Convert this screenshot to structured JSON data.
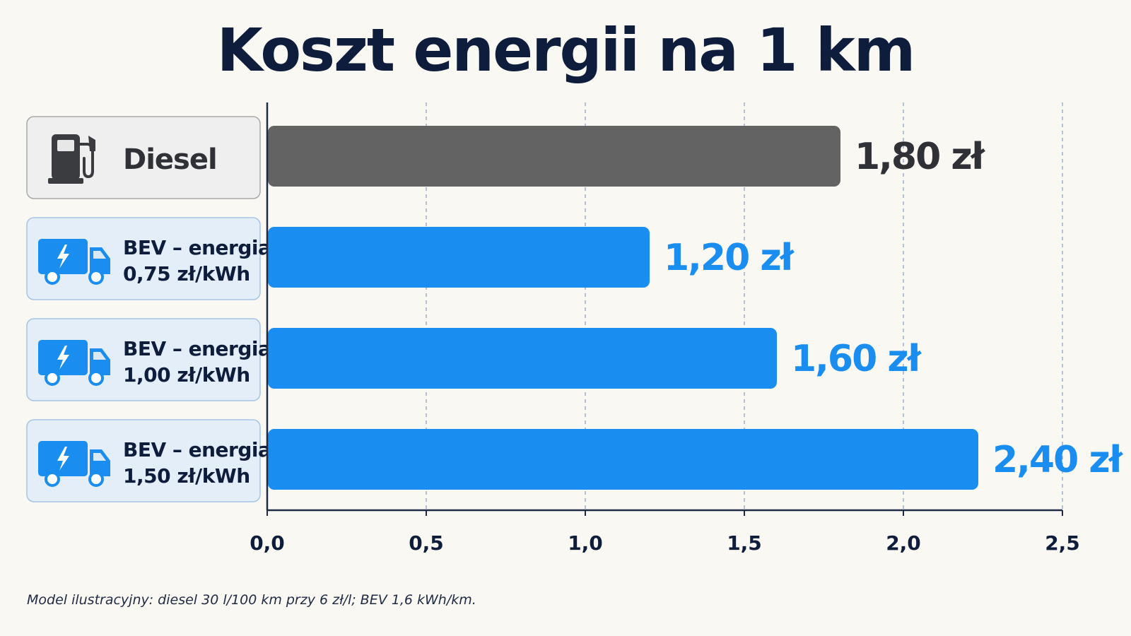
{
  "chart_data": {
    "type": "bar",
    "orientation": "horizontal",
    "title": "Koszt energii na 1 km",
    "categories": [
      {
        "lines": [
          "Diesel"
        ],
        "icon": "fuel-pump-icon",
        "kind": "diesel"
      },
      {
        "lines": [
          "BEV – energia",
          "0,75 zł/kWh"
        ],
        "icon": "electric-truck-icon",
        "kind": "bev"
      },
      {
        "lines": [
          "BEV – energia",
          "1,00 zł/kWh"
        ],
        "icon": "electric-truck-icon",
        "kind": "bev"
      },
      {
        "lines": [
          "BEV – energia",
          "1,50 zł/kWh"
        ],
        "icon": "electric-truck-icon",
        "kind": "bev"
      }
    ],
    "values": [
      1.8,
      1.2,
      1.6,
      2.4
    ],
    "value_labels": [
      "1,80 zł",
      "1,20 zł",
      "1,60 zł",
      "2,40 zł"
    ],
    "xlim": [
      0,
      2.5
    ],
    "xticks": [
      0,
      0.5,
      1.0,
      1.5,
      2.0,
      2.5
    ],
    "xtick_labels": [
      "0,0",
      "0,5",
      "1,0",
      "1,5",
      "2,0",
      "2,5"
    ],
    "grid": "vertical-dashed",
    "colors": {
      "diesel": "#636363",
      "diesel_label": "#2f3136",
      "bev": "#1a8ef0",
      "bev_label": "#1a8ef0",
      "axis": "#1f2a44",
      "title": "#0f1d3d"
    }
  },
  "footnote": "Model ilustracyjny: diesel 30 l/100 km przy 6 zł/l; BEV 1,6 kWh/km."
}
